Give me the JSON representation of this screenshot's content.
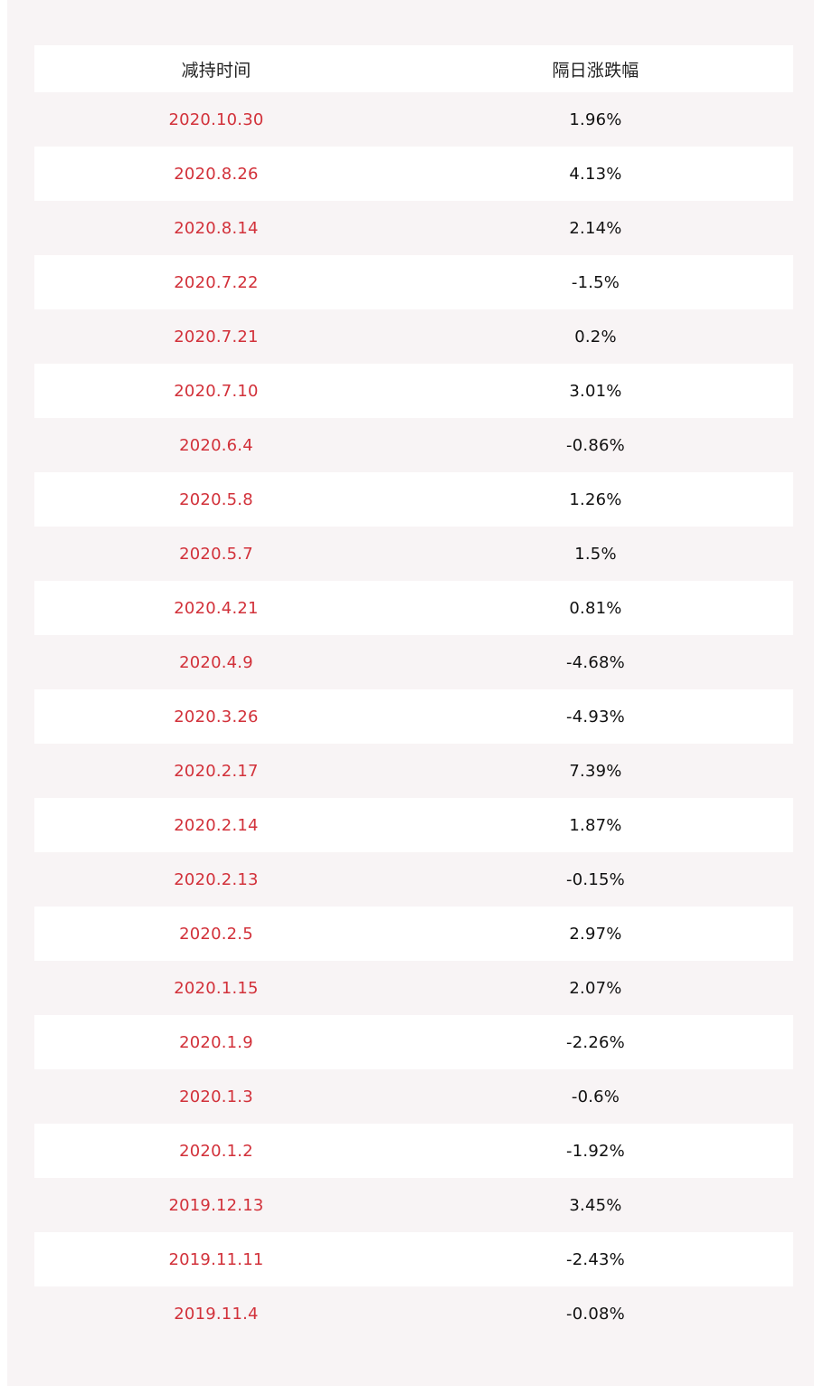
{
  "table": {
    "headers": [
      "减持时间",
      "隔日涨跌幅"
    ],
    "rows": [
      {
        "date": "2020.10.30",
        "change": "1.96%"
      },
      {
        "date": "2020.8.26",
        "change": "4.13%"
      },
      {
        "date": "2020.8.14",
        "change": "2.14%"
      },
      {
        "date": "2020.7.22",
        "change": "-1.5%"
      },
      {
        "date": "2020.7.21",
        "change": "0.2%"
      },
      {
        "date": "2020.7.10",
        "change": "3.01%"
      },
      {
        "date": "2020.6.4",
        "change": "-0.86%"
      },
      {
        "date": "2020.5.8",
        "change": "1.26%"
      },
      {
        "date": "2020.5.7",
        "change": "1.5%"
      },
      {
        "date": "2020.4.21",
        "change": "0.81%"
      },
      {
        "date": "2020.4.9",
        "change": "-4.68%"
      },
      {
        "date": "2020.3.26",
        "change": "-4.93%"
      },
      {
        "date": "2020.2.17",
        "change": "7.39%"
      },
      {
        "date": "2020.2.14",
        "change": "1.87%"
      },
      {
        "date": "2020.2.13",
        "change": "-0.15%"
      },
      {
        "date": "2020.2.5",
        "change": "2.97%"
      },
      {
        "date": "2020.1.15",
        "change": "2.07%"
      },
      {
        "date": "2020.1.9",
        "change": "-2.26%"
      },
      {
        "date": "2020.1.3",
        "change": "-0.6%"
      },
      {
        "date": "2020.1.2",
        "change": "-1.92%"
      },
      {
        "date": "2019.12.13",
        "change": "3.45%"
      },
      {
        "date": "2019.11.11",
        "change": "-2.43%"
      },
      {
        "date": "2019.11.4",
        "change": "-0.08%"
      }
    ]
  },
  "colors": {
    "date_text": "#d2313a",
    "value_text": "#111111",
    "panel_bg": "#f8f4f5",
    "row_alt_bg": "#ffffff"
  }
}
